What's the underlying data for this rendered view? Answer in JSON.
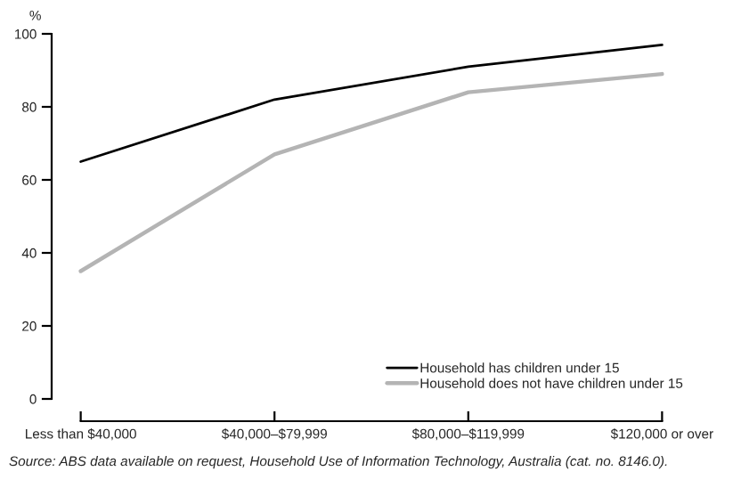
{
  "chart_data": {
    "type": "line",
    "categories": [
      "Less than $40,000",
      "$40,000–$79,999",
      "$80,000–$119,999",
      "$120,000 or over"
    ],
    "ylabel": "%",
    "series": [
      {
        "name": "Household has children under 15",
        "color": "#000000",
        "values": [
          65,
          82,
          91,
          97
        ]
      },
      {
        "name": "Household does not have children under 15",
        "color": "#b4b4b4",
        "values": [
          35,
          67,
          84,
          89
        ]
      }
    ],
    "ylim": [
      0,
      100
    ],
    "yticks": [
      0,
      20,
      40,
      60,
      80,
      100
    ],
    "grid": false,
    "legend": "bottom right",
    "marker": "none",
    "line_style": "solid",
    "annotations": [
      "Source: ABS data available on request, Household Use of Information Technology, Australia (cat. no. 8146.0)."
    ]
  }
}
